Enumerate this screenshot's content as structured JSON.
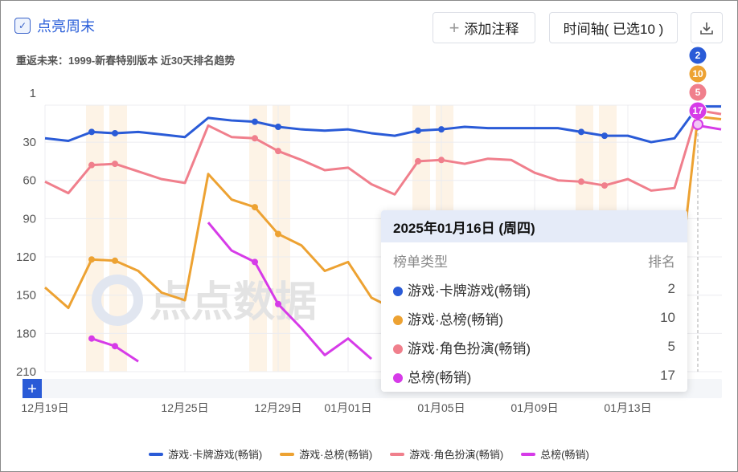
{
  "header": {
    "weekend_label": "点亮周末",
    "annotate_label": "添加注释",
    "timeline_label": "时间轴( 已选10 )",
    "subtitle": "重返未来：1999-新春特别版本 近30天排名趋势"
  },
  "colors": {
    "blue": "#2a5bd7",
    "orange": "#eda232",
    "pink": "#f07f8c",
    "magenta": "#d63be8",
    "weekend": "#fdf3e6"
  },
  "tooltip": {
    "date": "2025年01月16日 (周四)",
    "col_type": "榜单类型",
    "col_rank": "排名",
    "rows": [
      {
        "name": "游戏·卡牌游戏(畅销)",
        "value": "2"
      },
      {
        "name": "游戏·总榜(畅销)",
        "value": "10"
      },
      {
        "name": "游戏·角色扮演(畅销)",
        "value": "5"
      },
      {
        "name": "总榜(畅销)",
        "value": "17"
      }
    ]
  },
  "chart_data": {
    "type": "line",
    "title": "重返未来：1999-新春特别版本 近30天排名趋势",
    "ylabel": "排名",
    "yinverse": true,
    "ylim": [
      1,
      210
    ],
    "yticks": [
      "1",
      "30",
      "60",
      "90",
      "120",
      "150",
      "180",
      "210"
    ],
    "xticks": [
      {
        "i": 0,
        "label": "12月19日"
      },
      {
        "i": 6,
        "label": "12月25日"
      },
      {
        "i": 10,
        "label": "12月29日"
      },
      {
        "i": 13,
        "label": "01月01日"
      },
      {
        "i": 17,
        "label": "01月05日"
      },
      {
        "i": 21,
        "label": "01月09日"
      },
      {
        "i": 25,
        "label": "01月13日"
      }
    ],
    "x": [
      "12-19",
      "12-20",
      "12-21",
      "12-22",
      "12-23",
      "12-24",
      "12-25",
      "12-26",
      "12-27",
      "12-28",
      "12-29",
      "12-30",
      "12-31",
      "01-01",
      "01-02",
      "01-03",
      "01-04",
      "01-05",
      "01-06",
      "01-07",
      "01-08",
      "01-09",
      "01-10",
      "01-11",
      "01-12",
      "01-13",
      "01-14",
      "01-15",
      "01-16",
      "01-17"
    ],
    "weekend_indices": [
      2,
      3,
      9,
      10,
      16,
      17,
      23,
      24
    ],
    "highlight_index": 28,
    "series": [
      {
        "name": "游戏·卡牌游戏(畅销)",
        "color": "#2a5bd7",
        "values": [
          27,
          29,
          22,
          23,
          22,
          24,
          26,
          11,
          13,
          14,
          18,
          20,
          21,
          20,
          23,
          25,
          21,
          20,
          18,
          19,
          19,
          19,
          19,
          22,
          25,
          25,
          30,
          27,
          2,
          2
        ]
      },
      {
        "name": "游戏·总榜(畅销)",
        "color": "#eda232",
        "values": [
          144,
          160,
          122,
          123,
          131,
          148,
          154,
          55,
          75,
          81,
          102,
          111,
          131,
          124,
          152,
          161,
          165,
          168,
          170,
          172,
          170,
          168,
          170,
          172,
          175,
          172,
          178,
          173,
          10,
          12
        ]
      },
      {
        "name": "游戏·角色扮演(畅销)",
        "color": "#f07f8c",
        "values": [
          61,
          70,
          48,
          47,
          53,
          59,
          62,
          17,
          26,
          27,
          37,
          44,
          52,
          50,
          63,
          71,
          45,
          44,
          47,
          43,
          44,
          54,
          60,
          61,
          64,
          59,
          68,
          66,
          5,
          8
        ]
      },
      {
        "name": "总榜(畅销)",
        "color": "#d63be8",
        "values": [
          null,
          null,
          184,
          190,
          202,
          null,
          null,
          93,
          115,
          124,
          157,
          176,
          197,
          184,
          200,
          null,
          null,
          null,
          null,
          null,
          null,
          null,
          null,
          null,
          null,
          null,
          null,
          null,
          17,
          20
        ]
      }
    ]
  }
}
